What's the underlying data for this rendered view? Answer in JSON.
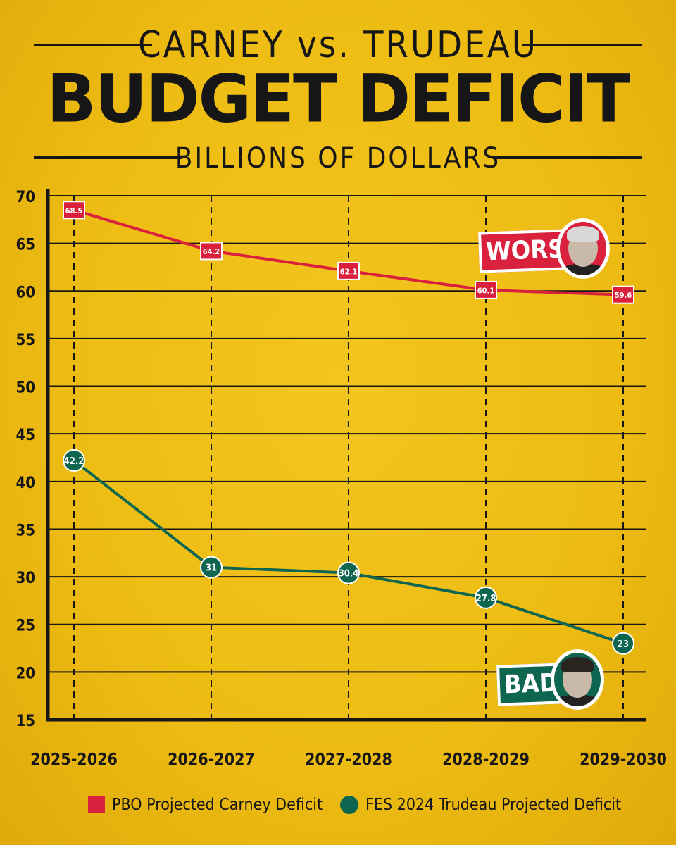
{
  "header": {
    "title_line1": "CARNEY vs. TRUDEAU",
    "title_line2": "BUDGET DEFICIT",
    "subtitle": "BILLIONS OF DOLLARS"
  },
  "callouts": {
    "carney_label": "WORSE",
    "trudeau_label": "BAD"
  },
  "colors": {
    "background": "#eebd14",
    "carney": "#d9203c",
    "trudeau": "#0f6650",
    "ink": "#161616"
  },
  "chart_data": {
    "type": "line",
    "title": "BUDGET DEFICIT",
    "ylabel": "BILLIONS OF DOLLARS",
    "xlabel": "",
    "categories": [
      "2025-2026",
      "2026-2027",
      "2027-2028",
      "2028-2029",
      "2029-2030"
    ],
    "ylim": [
      15,
      70
    ],
    "yticks": [
      15,
      20,
      25,
      30,
      35,
      40,
      45,
      50,
      55,
      60,
      65,
      70
    ],
    "grid": "horizontal solid, vertical dashed",
    "legend_position": "bottom",
    "series": [
      {
        "name": "PBO Projected Carney Deficit",
        "marker": "square",
        "color": "#d9203c",
        "values": [
          68.5,
          64.2,
          62.1,
          60.1,
          59.6
        ]
      },
      {
        "name": "FES 2024 Trudeau Projected Deficit",
        "marker": "circle",
        "color": "#0f6650",
        "values": [
          42.2,
          31,
          30.4,
          27.8,
          23
        ]
      }
    ]
  }
}
